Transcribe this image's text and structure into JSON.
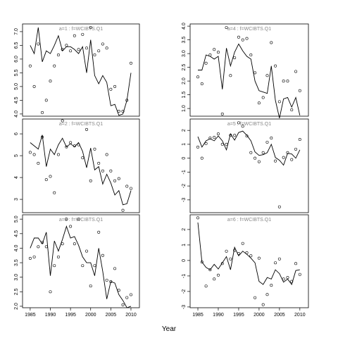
{
  "xlabel": "Year",
  "chart_data": [
    {
      "type": "line",
      "title": "a=1  :  f=WCIBTS.Q1",
      "x": [
        1985,
        1986,
        1987,
        1988,
        1989,
        1990,
        1991,
        1992,
        1993,
        1994,
        1995,
        1996,
        1997,
        1998,
        1999,
        2000,
        2001,
        2002,
        2003,
        2004,
        2005,
        2006,
        2007,
        2008,
        2009,
        2010
      ],
      "values": [
        6.5,
        6.2,
        7.15,
        5.9,
        6.3,
        6.2,
        6.5,
        6.85,
        6.3,
        6.45,
        6.45,
        6.35,
        6.2,
        6.45,
        5.5,
        6.7,
        5.4,
        5.1,
        5.4,
        5.15,
        4.3,
        4.35,
        3.95,
        4.0,
        4.5,
        5.5
      ],
      "observed": [
        5.75,
        5.0,
        6.55,
        4.05,
        4.5,
        5.2,
        5.75,
        6.15,
        6.35,
        6.5,
        6.3,
        6.85,
        6.35,
        6.9,
        6.4,
        7.15,
        6.15,
        6.3,
        6.55,
        6.4,
        4.9,
        5.0,
        4.1,
        4.1,
        4.5,
        5.85
      ],
      "xlim": [
        1983.1,
        2012.1
      ],
      "ylim": [
        3.92,
        7.28
      ],
      "yticks": [
        {
          "value": 4,
          "label": "4.0"
        },
        4.5,
        {
          "value": 5,
          "label": "5.0"
        },
        5.5,
        {
          "value": 6,
          "label": "6.0"
        },
        6.5,
        {
          "value": 7,
          "label": "7.0"
        }
      ]
    },
    {
      "type": "line",
      "title": "a=2  :  f=WCIBTS.Q1",
      "x": [
        1985,
        1986,
        1987,
        1988,
        1989,
        1990,
        1991,
        1992,
        1993,
        1994,
        1995,
        1996,
        1997,
        1998,
        1999,
        2000,
        2001,
        2002,
        2003,
        2004,
        2005,
        2006,
        2007,
        2008,
        2009,
        2010
      ],
      "values": [
        5.6,
        5.45,
        5.3,
        5.95,
        4.5,
        5.3,
        5.05,
        5.5,
        5.8,
        5.4,
        5.55,
        5.4,
        5.6,
        5.2,
        4.45,
        5.35,
        4.35,
        4.5,
        3.7,
        4.15,
        3.75,
        3.2,
        3.4,
        2.75,
        2.8,
        3.4
      ],
      "observed": [
        5.15,
        5.05,
        4.65,
        5.85,
        3.9,
        4.05,
        3.3,
        5.05,
        6.6,
        5.4,
        5.6,
        5.45,
        5.5,
        4.9,
        6.2,
        3.85,
        5.3,
        4.65,
        4.3,
        5.05,
        4.3,
        3.85,
        3.95,
        2.5,
        3.6,
        3.5
      ],
      "xlim": [
        1983.1,
        2012.1
      ],
      "ylim": [
        2.39,
        6.68
      ],
      "yticks": [
        3,
        4,
        5,
        6
      ]
    },
    {
      "type": "line",
      "title": "a=3  :  f=WCIBTS.Q1",
      "x": [
        1985,
        1986,
        1987,
        1988,
        1989,
        1990,
        1991,
        1992,
        1993,
        1994,
        1995,
        1996,
        1997,
        1998,
        1999,
        2000,
        2001,
        2002,
        2003,
        2004,
        2005,
        2006,
        2007,
        2008,
        2009,
        2010
      ],
      "values": [
        4.0,
        4.35,
        4.35,
        4.15,
        4.55,
        3.05,
        4.25,
        3.9,
        4.3,
        4.75,
        4.35,
        4.4,
        4.1,
        3.7,
        3.5,
        3.5,
        3.05,
        4.0,
        3.2,
        2.25,
        2.85,
        2.8,
        2.4,
        2.2,
        1.95,
        2.0
      ],
      "observed": [
        3.65,
        3.7,
        4.05,
        4.2,
        4.05,
        2.5,
        3.4,
        3.7,
        4.15,
        5.0,
        4.75,
        4.15,
        5.0,
        3.4,
        3.9,
        2.7,
        3.4,
        4.55,
        3.75,
        2.9,
        2.85,
        3.3,
        2.55,
        2.05,
        2.3,
        2.4
      ],
      "xlim": [
        1983.1,
        2012.1
      ],
      "ylim": [
        1.95,
        5.15
      ],
      "yticks": [
        {
          "value": 2,
          "label": "2.0"
        },
        2.5,
        {
          "value": 3,
          "label": "3.0"
        },
        3.5,
        {
          "value": 4,
          "label": "4.0"
        },
        4.5,
        {
          "value": 5,
          "label": "5.0"
        }
      ],
      "xticks": [
        1985,
        1990,
        1995,
        2000,
        2005,
        2010
      ]
    },
    {
      "type": "line",
      "title": "a=4  :  f=WCIBTS.Q1",
      "x": [
        1985,
        1986,
        1987,
        1988,
        1989,
        1990,
        1991,
        1992,
        1993,
        1994,
        1995,
        1996,
        1997,
        1998,
        1999,
        2000,
        2001,
        2002,
        2003,
        2004,
        2005,
        2006,
        2007,
        2008,
        2009,
        2010
      ],
      "values": [
        2.4,
        2.4,
        2.95,
        2.9,
        2.8,
        2.9,
        1.7,
        3.2,
        2.55,
        3.05,
        3.35,
        3.1,
        2.9,
        2.8,
        2.0,
        1.65,
        1.6,
        1.55,
        2.55,
        1.3,
        0.65,
        1.35,
        1.4,
        1.05,
        1.4,
        0.75
      ],
      "observed": [
        2.15,
        1.9,
        2.65,
        2.95,
        3.15,
        3.05,
        0.8,
        3.95,
        2.2,
        2.85,
        3.6,
        3.5,
        3.55,
        2.95,
        2.3,
        1.2,
        1.4,
        2.2,
        3.4,
        2.55,
        1.25,
        2.0,
        2.0,
        0.95,
        2.35,
        1.65
      ],
      "xlim": [
        1983.1,
        2012.1
      ],
      "ylim": [
        0.72,
        4.08
      ],
      "yticks": [
        {
          "value": 1,
          "label": "1.0"
        },
        1.5,
        {
          "value": 2,
          "label": "2.0"
        },
        2.5,
        {
          "value": 3,
          "label": "3.0"
        },
        3.5,
        {
          "value": 4,
          "label": "4.0"
        }
      ]
    },
    {
      "type": "line",
      "title": "a=5  :  f=WCIBTS.Q1",
      "x": [
        1985,
        1986,
        1987,
        1988,
        1989,
        1990,
        1991,
        1992,
        1993,
        1994,
        1995,
        1996,
        1997,
        1998,
        1999,
        2000,
        2001,
        2002,
        2003,
        2004,
        2005,
        2006,
        2007,
        2008,
        2009,
        2010
      ],
      "values": [
        1.55,
        0.8,
        1.25,
        1.4,
        1.25,
        1.6,
        1.25,
        0.6,
        1.75,
        1.3,
        1.85,
        1.95,
        1.65,
        1.25,
        0.45,
        0.2,
        0.25,
        0.4,
        1.0,
        0.05,
        -0.15,
        -0.5,
        0.35,
        0.3,
        0.0,
        0.6
      ],
      "observed": [
        0.8,
        0.0,
        1.05,
        1.45,
        1.5,
        1.75,
        1.0,
        1.0,
        1.65,
        1.65,
        2.55,
        2.3,
        1.6,
        0.4,
        0.0,
        -0.25,
        0.4,
        1.15,
        1.45,
        -0.2,
        -3.5,
        0.05,
        0.4,
        -0.1,
        0.65,
        1.35
      ],
      "xlim": [
        1983.1,
        2012.1
      ],
      "ylim": [
        -3.92,
        2.82
      ],
      "yticks": [
        -3,
        -2,
        -1,
        0,
        1,
        2
      ]
    },
    {
      "type": "line",
      "title": "a=6  :  f=WCIBTS.Q1",
      "x": [
        1985,
        1986,
        1987,
        1988,
        1989,
        1990,
        1991,
        1992,
        1993,
        1994,
        1995,
        1996,
        1997,
        1998,
        1999,
        2000,
        2001,
        2002,
        2003,
        2004,
        2005,
        2006,
        2007,
        2008,
        2009,
        2010
      ],
      "values": [
        2.45,
        -0.1,
        -0.45,
        -0.6,
        -0.25,
        -0.55,
        -0.15,
        0.25,
        -0.6,
        0.85,
        0.3,
        0.6,
        0.4,
        0.15,
        -0.15,
        -1.35,
        -1.55,
        -1.1,
        -1.2,
        -0.6,
        -0.85,
        -1.4,
        -1.2,
        -1.55,
        -0.65,
        -0.6
      ],
      "observed": [
        2.75,
        -0.1,
        -1.65,
        -0.6,
        -1.2,
        -0.95,
        -0.2,
        0.6,
        0.1,
        0.65,
        0.45,
        1.1,
        0.5,
        0.3,
        -2.4,
        0.15,
        -2.85,
        -2.2,
        -1.6,
        -0.15,
        0.1,
        -1.2,
        -1.1,
        -1.35,
        -0.2,
        -0.9
      ],
      "xlim": [
        1983.1,
        2012.1
      ],
      "ylim": [
        -3.05,
        2.95
      ],
      "yticks": [
        -3,
        -2,
        -1,
        0,
        1,
        2
      ],
      "xticks": [
        1985,
        1990,
        1995,
        2000,
        2005,
        2010
      ]
    }
  ]
}
